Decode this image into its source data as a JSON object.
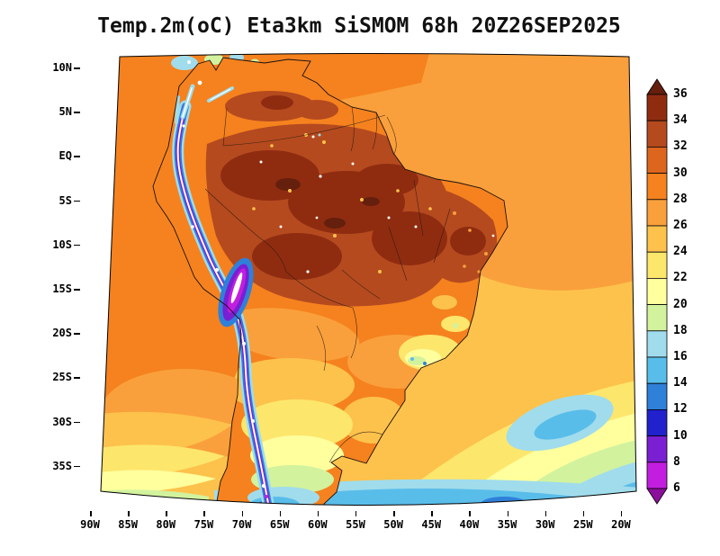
{
  "title": "Temp.2m(oC) Eta3km SiSMOM 68h 20Z26SEP2025",
  "axes": {
    "lat_ticks": [
      "10N",
      "5N",
      "EQ",
      "5S",
      "10S",
      "15S",
      "20S",
      "25S",
      "30S",
      "35S"
    ],
    "lon_ticks": [
      "90W",
      "85W",
      "80W",
      "75W",
      "70W",
      "65W",
      "60W",
      "55W",
      "50W",
      "45W",
      "40W",
      "35W",
      "30W",
      "25W",
      "20W"
    ]
  },
  "colorbar": {
    "tick_labels": [
      "36",
      "34",
      "32",
      "30",
      "28",
      "26",
      "24",
      "22",
      "20",
      "18",
      "16",
      "14",
      "12",
      "10",
      "8",
      "6"
    ],
    "levels": [
      {
        "range": "> 36",
        "color": "#641f0d"
      },
      {
        "range": "34-36",
        "color": "#8f2c10"
      },
      {
        "range": "32-34",
        "color": "#b54a1f"
      },
      {
        "range": "30-32",
        "color": "#dd661f"
      },
      {
        "range": "28-30",
        "color": "#f5821e"
      },
      {
        "range": "26-28",
        "color": "#f9a03c"
      },
      {
        "range": "24-26",
        "color": "#fdc24c"
      },
      {
        "range": "22-24",
        "color": "#fde66c"
      },
      {
        "range": "20-22",
        "color": "#ffff9e"
      },
      {
        "range": "18-20",
        "color": "#d2f29e"
      },
      {
        "range": "16-18",
        "color": "#a0dcec"
      },
      {
        "range": "14-16",
        "color": "#59bdea"
      },
      {
        "range": "12-14",
        "color": "#2f80d9"
      },
      {
        "range": "10-12",
        "color": "#2121cd"
      },
      {
        "range": "8-10",
        "color": "#7a1fd2"
      },
      {
        "range": "6-8",
        "color": "#c31ee0"
      },
      {
        "range": "< 6",
        "color": "#8c0f9b"
      }
    ]
  },
  "chart_data": {
    "type": "heatmap",
    "title": "Temp.2m(oC) Eta3km SiSMOM 68h 20Z26SEP2025",
    "variable": "Temp.2m",
    "units": "oC",
    "model": "Eta3km",
    "system": "SiSMOM",
    "forecast_hour": "68h",
    "valid_time": "20Z26SEP2025",
    "lat_range": [
      "10N",
      "35S"
    ],
    "lon_range": [
      "90W",
      "20W"
    ],
    "colorbar_ticks": [
      36,
      34,
      32,
      30,
      28,
      26,
      24,
      22,
      20,
      18,
      16,
      14,
      12,
      10,
      8,
      6
    ],
    "legend_position": "right"
  }
}
